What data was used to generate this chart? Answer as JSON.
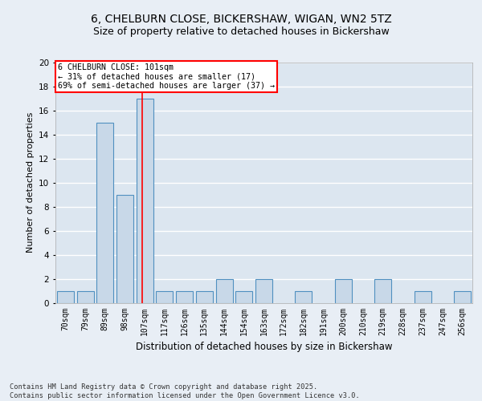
{
  "title": "6, CHELBURN CLOSE, BICKERSHAW, WIGAN, WN2 5TZ",
  "subtitle": "Size of property relative to detached houses in Bickershaw",
  "xlabel": "Distribution of detached houses by size in Bickershaw",
  "ylabel": "Number of detached properties",
  "categories": [
    "70sqm",
    "79sqm",
    "89sqm",
    "98sqm",
    "107sqm",
    "117sqm",
    "126sqm",
    "135sqm",
    "144sqm",
    "154sqm",
    "163sqm",
    "172sqm",
    "182sqm",
    "191sqm",
    "200sqm",
    "210sqm",
    "219sqm",
    "228sqm",
    "237sqm",
    "247sqm",
    "256sqm"
  ],
  "values": [
    1,
    1,
    15,
    9,
    17,
    1,
    1,
    1,
    2,
    1,
    2,
    0,
    1,
    0,
    2,
    0,
    2,
    0,
    1,
    0,
    1
  ],
  "bar_color": "#c8d8e8",
  "bar_edgecolor": "#5090c0",
  "red_line_index": 3.88,
  "annotation_text": "6 CHELBURN CLOSE: 101sqm\n← 31% of detached houses are smaller (17)\n69% of semi-detached houses are larger (37) →",
  "annotation_box_edgecolor": "red",
  "ylim": [
    0,
    20
  ],
  "yticks": [
    0,
    2,
    4,
    6,
    8,
    10,
    12,
    14,
    16,
    18,
    20
  ],
  "background_color": "#e8eef5",
  "plot_bg_color": "#dce6f0",
  "grid_color": "white",
  "title_fontsize": 10,
  "subtitle_fontsize": 9,
  "footer_text": "Contains HM Land Registry data © Crown copyright and database right 2025.\nContains public sector information licensed under the Open Government Licence v3.0."
}
